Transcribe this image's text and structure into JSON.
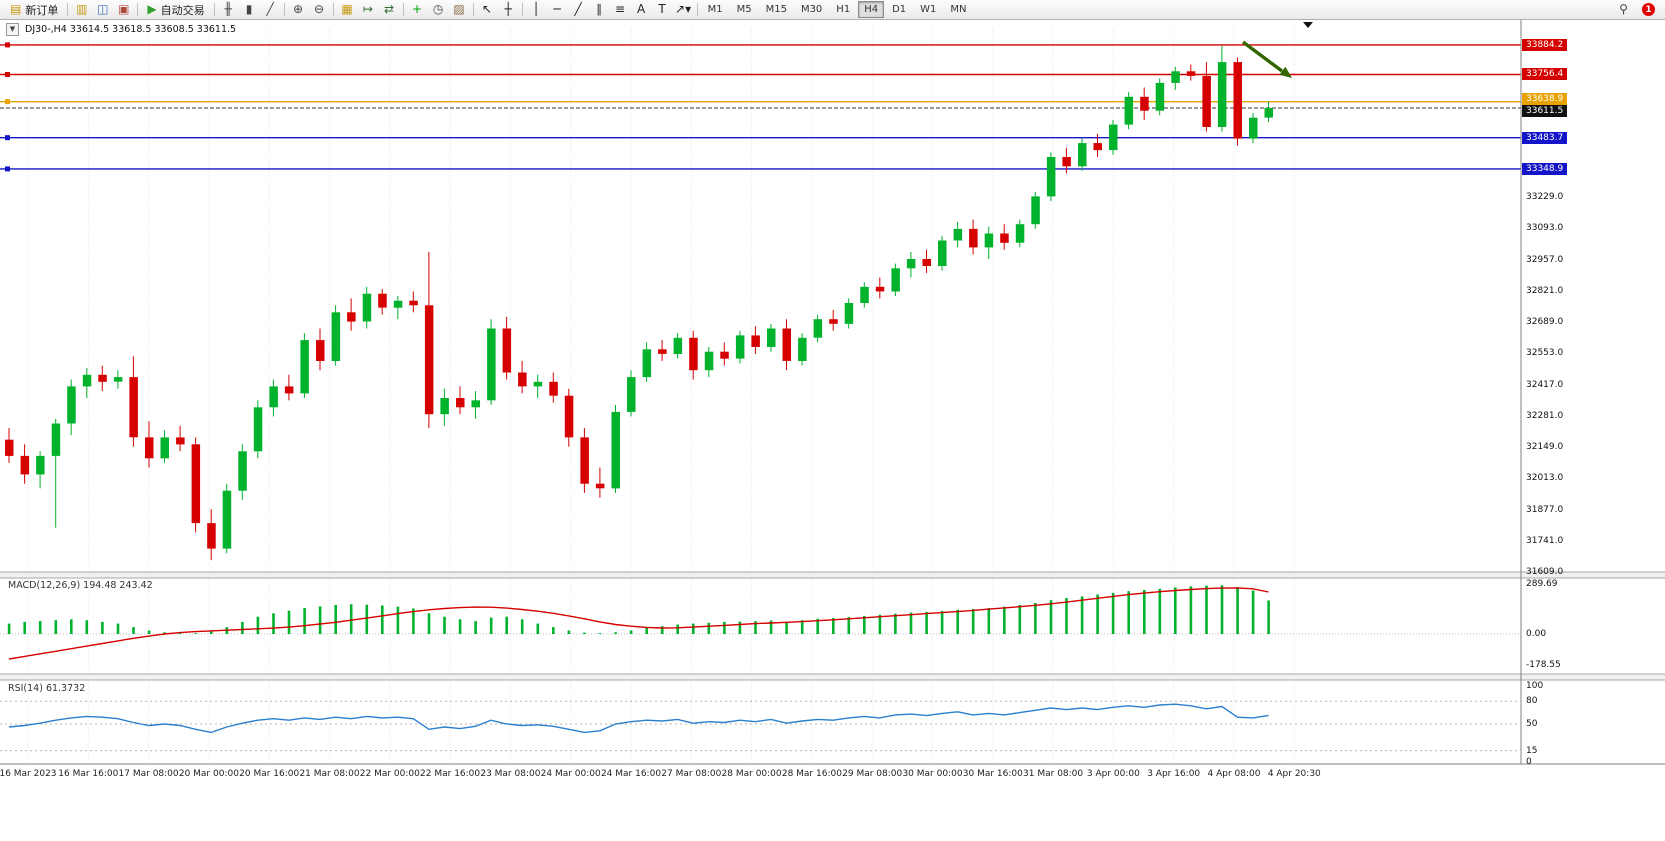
{
  "colors": {
    "up": "#00b22c",
    "down": "#d60000",
    "macd_hist": "#00b22c",
    "macd_signal": "#d60000",
    "rsi_line": "#2a7fce",
    "hline_red": "#d40000",
    "hline_orange": "#e8a200",
    "hline_blue": "#1414c8",
    "current_price": "#222222",
    "arrow": "#336600",
    "grid": "#e4e4e4",
    "axis": "#808080"
  },
  "toolbar": {
    "new_order_label": "新订单",
    "autotrading_label": "自动交易",
    "search_glyph": "⚲",
    "notification_count": "1",
    "timeframes": [
      "M1",
      "M5",
      "M15",
      "M30",
      "H1",
      "H4",
      "D1",
      "W1",
      "MN"
    ],
    "active_timeframe": "H4",
    "groups": [
      {
        "type": "labeled-button",
        "name": "new-order-button",
        "icon": {
          "name": "new-order-icon",
          "glyph": "▤",
          "color": "#c79810"
        },
        "label": "新订单"
      },
      {
        "type": "sep"
      },
      {
        "type": "icons",
        "items": [
          {
            "name": "new-chart-icon",
            "glyph": "▥",
            "color": "#c79810"
          },
          {
            "name": "profiles-icon",
            "glyph": "◫",
            "color": "#3b6fc4"
          },
          {
            "name": "terminal-icon",
            "glyph": "▣",
            "color": "#b04a3a"
          }
        ]
      },
      {
        "type": "sep"
      },
      {
        "type": "labeled-button",
        "name": "autotrading-button",
        "icon": {
          "name": "autotrading-icon",
          "glyph": "▶",
          "color": "#2fa12f"
        },
        "label": "自动交易"
      },
      {
        "type": "sep"
      },
      {
        "type": "icons",
        "items": [
          {
            "name": "bars-icon",
            "glyph": "╫",
            "color": "#444444"
          },
          {
            "name": "candlesticks-icon",
            "glyph": "▮",
            "color": "#444444"
          },
          {
            "name": "line-chart-icon",
            "glyph": "╱",
            "color": "#444444"
          }
        ]
      },
      {
        "type": "sep"
      },
      {
        "type": "icons",
        "items": [
          {
            "name": "zoom-in-icon",
            "glyph": "⊕",
            "color": "#444444"
          },
          {
            "name": "zoom-out-icon",
            "glyph": "⊖",
            "color": "#444444"
          }
        ]
      },
      {
        "type": "sep"
      },
      {
        "type": "icons",
        "items": [
          {
            "name": "tile-windows-icon",
            "glyph": "▦",
            "color": "#c79810"
          },
          {
            "name": "autoscroll-icon",
            "glyph": "↦",
            "color": "#2f6f2f"
          },
          {
            "name": "chart-shift-icon",
            "glyph": "⇄",
            "color": "#2f6f2f"
          }
        ]
      },
      {
        "type": "sep"
      },
      {
        "type": "icons",
        "items": [
          {
            "name": "indicators-icon",
            "glyph": "+",
            "color": "#00a000"
          },
          {
            "name": "periods-icon",
            "glyph": "◷",
            "color": "#444444"
          },
          {
            "name": "templates-icon",
            "glyph": "▨",
            "color": "#8a6a4a"
          }
        ]
      },
      {
        "type": "sep"
      },
      {
        "type": "icons",
        "items": [
          {
            "name": "cursor-icon",
            "glyph": "↖",
            "color": "#222222"
          },
          {
            "name": "crosshair-icon",
            "glyph": "┼",
            "color": "#222222"
          }
        ]
      },
      {
        "type": "sep"
      },
      {
        "type": "icons",
        "items": [
          {
            "name": "vertical-line-icon",
            "glyph": "│",
            "color": "#222222"
          },
          {
            "name": "horizontal-line-icon",
            "glyph": "─",
            "color": "#222222"
          },
          {
            "name": "trendline-icon",
            "glyph": "╱",
            "color": "#222222"
          },
          {
            "name": "channel-icon",
            "glyph": "∥",
            "color": "#222222"
          },
          {
            "name": "fibonacci-icon",
            "glyph": "≡",
            "color": "#222222"
          },
          {
            "name": "text-icon",
            "glyph": "A",
            "color": "#222222"
          },
          {
            "name": "label-icon",
            "glyph": "T",
            "color": "#222222"
          },
          {
            "name": "arrows-dropdown-icon",
            "glyph": "↗▾",
            "color": "#222222"
          }
        ]
      },
      {
        "type": "sep"
      },
      {
        "type": "timeframes"
      }
    ]
  },
  "chart": {
    "title_line": "DJ30-,H4  33614.5 33618.5 33608.5 33611.5",
    "one_click_glyph": "▼"
  },
  "panes": {
    "macd_label": "MACD(12,26,9) 194.48 243.42",
    "rsi_label": "RSI(14) 61.3732"
  },
  "chart_data": {
    "type": "candlestick",
    "symbol_period": "DJ30-,H4",
    "ohlc_display": [
      33614.5,
      33618.5,
      33608.5,
      33611.5
    ],
    "visible_price_range": [
      31609.0,
      33957.0
    ],
    "price_axis_ticks": [
      33229.0,
      33093.0,
      32957.0,
      32821.0,
      32689.0,
      32553.0,
      32417.0,
      32281.0,
      32149.0,
      32013.0,
      31877.0,
      31741.0,
      31609.0
    ],
    "x_labels": [
      "16 Mar 2023",
      "16 Mar 16:00",
      "17 Mar 08:00",
      "20 Mar 00:00",
      "20 Mar 16:00",
      "21 Mar 08:00",
      "22 Mar 00:00",
      "22 Mar 16:00",
      "23 Mar 08:00",
      "24 Mar 00:00",
      "24 Mar 16:00",
      "27 Mar 08:00",
      "28 Mar 00:00",
      "28 Mar 16:00",
      "29 Mar 08:00",
      "30 Mar 00:00",
      "30 Mar 16:00",
      "31 Mar 08:00",
      "3 Apr 00:00",
      "3 Apr 16:00",
      "4 Apr 08:00",
      "4 Apr 20:30"
    ],
    "hlines": [
      {
        "price": 33884.2,
        "label": "33884.2",
        "color": "#d40000"
      },
      {
        "price": 33756.4,
        "label": "33756.4",
        "color": "#d40000"
      },
      {
        "price": 33638.9,
        "label": "33638.9",
        "color": "#e8a200"
      },
      {
        "price": 33483.7,
        "label": "33483.7",
        "color": "#1414c8"
      },
      {
        "price": 33348.9,
        "label": "33348.9",
        "color": "#1414c8"
      }
    ],
    "current_price": {
      "value": 33611.5,
      "label": "33611.5",
      "badge_color": "#111111"
    },
    "annotations": [
      {
        "type": "arrow",
        "direction": "down-right",
        "color": "#336600"
      }
    ],
    "candles": [
      [
        32180,
        32230,
        32080,
        32110
      ],
      [
        32110,
        32160,
        31990,
        32030
      ],
      [
        32030,
        32130,
        31970,
        32110
      ],
      [
        32110,
        32270,
        31800,
        32250
      ],
      [
        32250,
        32440,
        32200,
        32410
      ],
      [
        32410,
        32490,
        32360,
        32460
      ],
      [
        32460,
        32500,
        32390,
        32430
      ],
      [
        32430,
        32480,
        32400,
        32450
      ],
      [
        32450,
        32540,
        32150,
        32190
      ],
      [
        32190,
        32260,
        32060,
        32100
      ],
      [
        32100,
        32220,
        32080,
        32190
      ],
      [
        32190,
        32240,
        32130,
        32160
      ],
      [
        32160,
        32190,
        31780,
        31820
      ],
      [
        31820,
        31880,
        31660,
        31710
      ],
      [
        31710,
        31990,
        31690,
        31960
      ],
      [
        31960,
        32160,
        31920,
        32130
      ],
      [
        32130,
        32350,
        32100,
        32320
      ],
      [
        32320,
        32440,
        32280,
        32410
      ],
      [
        32410,
        32460,
        32350,
        32380
      ],
      [
        32380,
        32640,
        32360,
        32610
      ],
      [
        32610,
        32660,
        32480,
        32520
      ],
      [
        32520,
        32760,
        32500,
        32730
      ],
      [
        32730,
        32790,
        32650,
        32690
      ],
      [
        32690,
        32840,
        32660,
        32810
      ],
      [
        32810,
        32830,
        32720,
        32750
      ],
      [
        32750,
        32800,
        32700,
        32780
      ],
      [
        32780,
        32820,
        32730,
        32760
      ],
      [
        32760,
        32990,
        32230,
        32290
      ],
      [
        32290,
        32400,
        32240,
        32360
      ],
      [
        32360,
        32410,
        32290,
        32320
      ],
      [
        32320,
        32390,
        32270,
        32350
      ],
      [
        32350,
        32700,
        32330,
        32660
      ],
      [
        32660,
        32710,
        32440,
        32470
      ],
      [
        32470,
        32520,
        32380,
        32410
      ],
      [
        32410,
        32460,
        32360,
        32430
      ],
      [
        32430,
        32470,
        32340,
        32370
      ],
      [
        32370,
        32400,
        32150,
        32190
      ],
      [
        32190,
        32230,
        31950,
        31990
      ],
      [
        31990,
        32060,
        31930,
        31970
      ],
      [
        31970,
        32330,
        31950,
        32300
      ],
      [
        32300,
        32480,
        32280,
        32450
      ],
      [
        32450,
        32600,
        32430,
        32570
      ],
      [
        32570,
        32610,
        32520,
        32550
      ],
      [
        32550,
        32640,
        32530,
        32620
      ],
      [
        32620,
        32650,
        32440,
        32480
      ],
      [
        32480,
        32580,
        32450,
        32560
      ],
      [
        32560,
        32600,
        32500,
        32530
      ],
      [
        32530,
        32650,
        32510,
        32630
      ],
      [
        32630,
        32670,
        32550,
        32580
      ],
      [
        32580,
        32680,
        32560,
        32660
      ],
      [
        32660,
        32700,
        32480,
        32520
      ],
      [
        32520,
        32640,
        32500,
        32620
      ],
      [
        32620,
        32720,
        32600,
        32700
      ],
      [
        32700,
        32740,
        32650,
        32680
      ],
      [
        32680,
        32790,
        32660,
        32770
      ],
      [
        32770,
        32860,
        32750,
        32840
      ],
      [
        32840,
        32880,
        32790,
        32820
      ],
      [
        32820,
        32940,
        32800,
        32920
      ],
      [
        32920,
        32990,
        32880,
        32960
      ],
      [
        32960,
        33000,
        32900,
        32930
      ],
      [
        32930,
        33060,
        32910,
        33040
      ],
      [
        33040,
        33120,
        33010,
        33090
      ],
      [
        33090,
        33130,
        32980,
        33010
      ],
      [
        33010,
        33100,
        32960,
        33070
      ],
      [
        33070,
        33110,
        33000,
        33030
      ],
      [
        33030,
        33130,
        33010,
        33110
      ],
      [
        33110,
        33250,
        33090,
        33230
      ],
      [
        33230,
        33420,
        33210,
        33400
      ],
      [
        33400,
        33440,
        33330,
        33360
      ],
      [
        33360,
        33480,
        33340,
        33460
      ],
      [
        33460,
        33500,
        33400,
        33430
      ],
      [
        33430,
        33560,
        33410,
        33540
      ],
      [
        33540,
        33680,
        33520,
        33660
      ],
      [
        33660,
        33700,
        33560,
        33600
      ],
      [
        33600,
        33740,
        33580,
        33720
      ],
      [
        33720,
        33790,
        33690,
        33770
      ],
      [
        33770,
        33800,
        33730,
        33750
      ],
      [
        33750,
        33810,
        33510,
        33530
      ],
      [
        33530,
        33880,
        33510,
        33810
      ],
      [
        33810,
        33830,
        33450,
        33480
      ],
      [
        33480,
        33590,
        33460,
        33570
      ],
      [
        33570,
        33640,
        33550,
        33611.5
      ]
    ],
    "indicators": {
      "macd": {
        "label": "MACD(12,26,9) 194.48 243.42",
        "axis_ticks": [
          289.69,
          0.0,
          -178.55
        ],
        "range": [
          -178.55,
          289.69
        ],
        "histogram": [
          60,
          70,
          75,
          80,
          85,
          80,
          70,
          60,
          40,
          20,
          10,
          8,
          5,
          15,
          40,
          70,
          100,
          120,
          135,
          150,
          160,
          168,
          172,
          170,
          165,
          158,
          148,
          120,
          100,
          85,
          75,
          95,
          100,
          85,
          60,
          40,
          20,
          8,
          5,
          10,
          20,
          35,
          45,
          55,
          60,
          65,
          70,
          72,
          75,
          78,
          70,
          80,
          88,
          92,
          98,
          105,
          112,
          118,
          124,
          128,
          134,
          140,
          145,
          150,
          158,
          168,
          180,
          196,
          208,
          218,
          228,
          238,
          248,
          255,
          262,
          270,
          276,
          280,
          282,
          272,
          252,
          194.48
        ],
        "signal": [
          -145,
          -130,
          -115,
          -100,
          -85,
          -70,
          -55,
          -40,
          -25,
          -12,
          0,
          8,
          14,
          18,
          22,
          26,
          30,
          34,
          40,
          48,
          58,
          68,
          80,
          92,
          105,
          118,
          130,
          140,
          148,
          153,
          156,
          155,
          150,
          142,
          132,
          120,
          105,
          88,
          70,
          55,
          45,
          38,
          35,
          36,
          40,
          45,
          50,
          55,
          60,
          64,
          68,
          72,
          77,
          82,
          88,
          94,
          100,
          106,
          112,
          118,
          124,
          130,
          137,
          144,
          151,
          158,
          166,
          175,
          185,
          196,
          207,
          218,
          228,
          237,
          245,
          252,
          258,
          263,
          266,
          267,
          262,
          243.42
        ]
      },
      "rsi": {
        "label": "RSI(14) 61.3732",
        "axis_ticks": [
          100,
          80,
          50,
          15,
          0
        ],
        "levels": [
          80,
          50,
          15
        ],
        "range": [
          0,
          100
        ],
        "values": [
          46,
          48,
          51,
          55,
          58,
          60,
          59,
          57,
          52,
          48,
          50,
          48,
          43,
          39,
          46,
          51,
          55,
          57,
          55,
          58,
          56,
          59,
          57,
          60,
          58,
          59,
          57,
          43,
          46,
          44,
          47,
          55,
          50,
          48,
          49,
          47,
          43,
          39,
          41,
          50,
          53,
          55,
          54,
          56,
          51,
          53,
          52,
          55,
          53,
          56,
          51,
          54,
          56,
          55,
          58,
          60,
          58,
          62,
          63,
          61,
          64,
          66,
          62,
          64,
          62,
          65,
          68,
          71,
          69,
          71,
          69,
          72,
          74,
          72,
          75,
          76,
          74,
          70,
          73,
          59,
          58,
          61.37
        ]
      }
    }
  }
}
